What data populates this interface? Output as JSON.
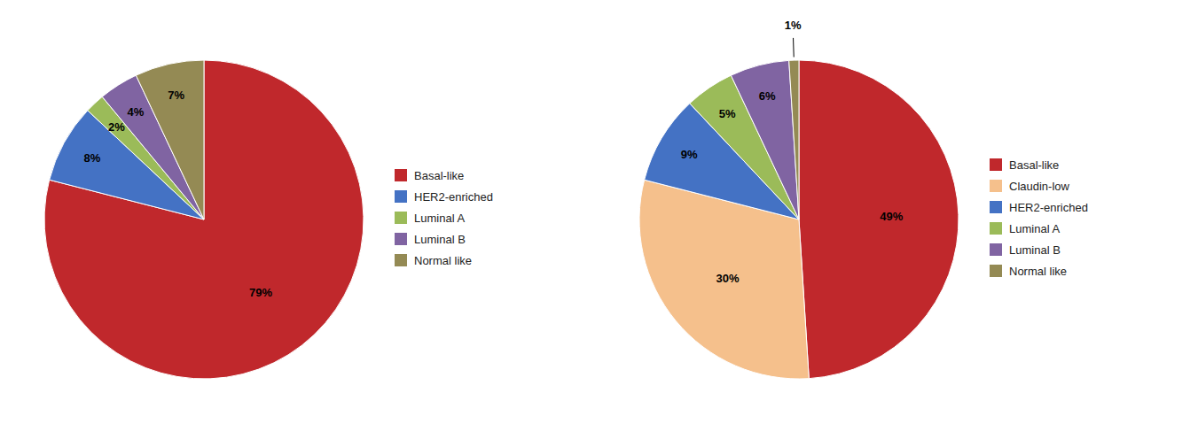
{
  "chart_data": [
    {
      "type": "pie",
      "categories": [
        "Basal-like",
        "HER2-enriched",
        "Luminal A",
        "Luminal B",
        "Normal like"
      ],
      "values": [
        79,
        8,
        2,
        4,
        7
      ],
      "value_labels": [
        "79%",
        "8%",
        "2%",
        "4%",
        "7%"
      ],
      "colors": [
        "#C0282C",
        "#4472C4",
        "#9BBB59",
        "#8064A2",
        "#948A54"
      ],
      "data_labels": true,
      "legend": "right"
    },
    {
      "type": "pie",
      "categories": [
        "Basal-like",
        "Claudin-low",
        "HER2-enriched",
        "Luminal A",
        "Luminal B",
        "Normal like"
      ],
      "values": [
        49,
        30,
        9,
        5,
        6,
        1
      ],
      "value_labels": [
        "49%",
        "30%",
        "9%",
        "5%",
        "6%",
        "1%"
      ],
      "colors": [
        "#C0282C",
        "#F5C08C",
        "#4472C4",
        "#9BBB59",
        "#8064A2",
        "#948A54"
      ],
      "data_labels": true,
      "legend": "right"
    }
  ]
}
